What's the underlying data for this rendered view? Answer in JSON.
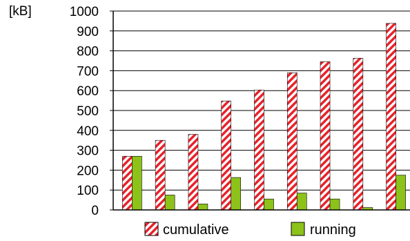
{
  "chart_data": {
    "type": "bar",
    "unit_label": "[kB]",
    "ylim": [
      0,
      1000
    ],
    "yticks": [
      "0",
      "100",
      "200",
      "300",
      "400",
      "500",
      "600",
      "700",
      "800",
      "900",
      "1000"
    ],
    "grid": true,
    "legend_position": "bottom",
    "categories": [
      "",
      "",
      "",
      "",
      "",
      "",
      "",
      "",
      ""
    ],
    "series": [
      {
        "name": "cumulative",
        "color": "#e8212a",
        "pattern": "diagonal-stripes",
        "values": [
          270,
          350,
          380,
          548,
          603,
          690,
          745,
          763,
          938
        ]
      },
      {
        "name": "running",
        "color": "#8cc21a",
        "pattern": "solid",
        "values": [
          270,
          75,
          30,
          163,
          55,
          85,
          55,
          12,
          175
        ]
      }
    ]
  }
}
